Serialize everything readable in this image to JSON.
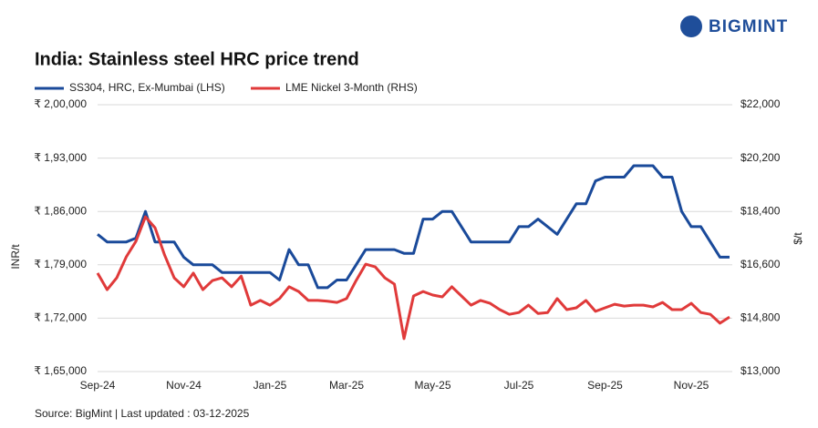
{
  "logo": "BIGMINT",
  "chart_data": {
    "type": "line",
    "title": "India: Stainless steel HRC price trend",
    "source": "Source: BigMint | Last updated : 03-12-2025",
    "y_label": "INR/t",
    "y2_label": "$/t",
    "legend": "top-left",
    "grid": true,
    "categories": [
      "Sep-24",
      null,
      null,
      null,
      null,
      null,
      null,
      null,
      null,
      "Nov-24",
      null,
      null,
      null,
      null,
      null,
      null,
      null,
      null,
      "Jan-25",
      null,
      null,
      null,
      null,
      null,
      null,
      null,
      "Mar-25",
      null,
      null,
      null,
      null,
      null,
      null,
      null,
      null,
      "May-25",
      null,
      null,
      null,
      null,
      null,
      null,
      null,
      null,
      "Jul-25",
      null,
      null,
      null,
      null,
      null,
      null,
      null,
      null,
      "Sep-25",
      null,
      null,
      null,
      null,
      null,
      null,
      null,
      null,
      "Nov-25",
      null,
      null,
      null,
      null
    ],
    "series": [
      {
        "name": "SS304, HRC, Ex-Mumbai (LHS)",
        "color": "#1a4a9a",
        "values": [
          183000,
          182000,
          182000,
          182000,
          182500,
          186000,
          182000,
          182000,
          182000,
          180000,
          179000,
          179000,
          179000,
          178000,
          178000,
          178000,
          178000,
          178000,
          178000,
          177000,
          181000,
          179000,
          179000,
          176000,
          176000,
          177000,
          177000,
          179000,
          181000,
          181000,
          181000,
          181000,
          180500,
          180500,
          185000,
          185000,
          186000,
          186000,
          184000,
          182000,
          182000,
          182000,
          182000,
          182000,
          184000,
          184000,
          185000,
          184000,
          183000,
          185000,
          187000,
          187000,
          190000,
          190500,
          190500,
          190500,
          192000,
          192000,
          192000,
          190500,
          190500,
          186000,
          184000,
          184000,
          182000,
          180000,
          180000
        ]
      },
      {
        "name": "LME Nickel 3-Month (RHS)",
        "color": "#e03a3a",
        "axis": "y2",
        "values": [
          16320,
          15760,
          16160,
          16870,
          17390,
          18220,
          17850,
          16930,
          16160,
          15860,
          16320,
          15760,
          16070,
          16160,
          15860,
          16220,
          15240,
          15400,
          15240,
          15460,
          15860,
          15700,
          15400,
          15400,
          15370,
          15330,
          15460,
          16070,
          16620,
          16530,
          16160,
          15950,
          14110,
          15550,
          15700,
          15580,
          15520,
          15860,
          15550,
          15240,
          15400,
          15300,
          15090,
          14930,
          14990,
          15240,
          14960,
          14990,
          15460,
          15090,
          15150,
          15400,
          15030,
          15150,
          15270,
          15210,
          15240,
          15240,
          15180,
          15330,
          15090,
          15090,
          15300,
          14990,
          14930,
          14630,
          14840
        ]
      }
    ],
    "ylim": [
      165000,
      200000
    ],
    "yticks": [
      {
        "value": 165000,
        "label": "₹ 1,65,000"
      },
      {
        "value": 172000,
        "label": "₹ 1,72,000"
      },
      {
        "value": 179000,
        "label": "₹ 1,79,000"
      },
      {
        "value": 186000,
        "label": "₹ 1,86,000"
      },
      {
        "value": 193000,
        "label": "₹ 1,93,000"
      },
      {
        "value": 200000,
        "label": "₹ 2,00,000"
      }
    ],
    "y2lim": [
      13000,
      22000
    ],
    "y2ticks": [
      {
        "value": 13000,
        "label": "$13,000"
      },
      {
        "value": 14800,
        "label": "$14,800"
      },
      {
        "value": 16600,
        "label": "$16,600"
      },
      {
        "value": 18400,
        "label": "$18,400"
      },
      {
        "value": 20200,
        "label": "$20,200"
      },
      {
        "value": 22000,
        "label": "$22,000"
      }
    ]
  }
}
